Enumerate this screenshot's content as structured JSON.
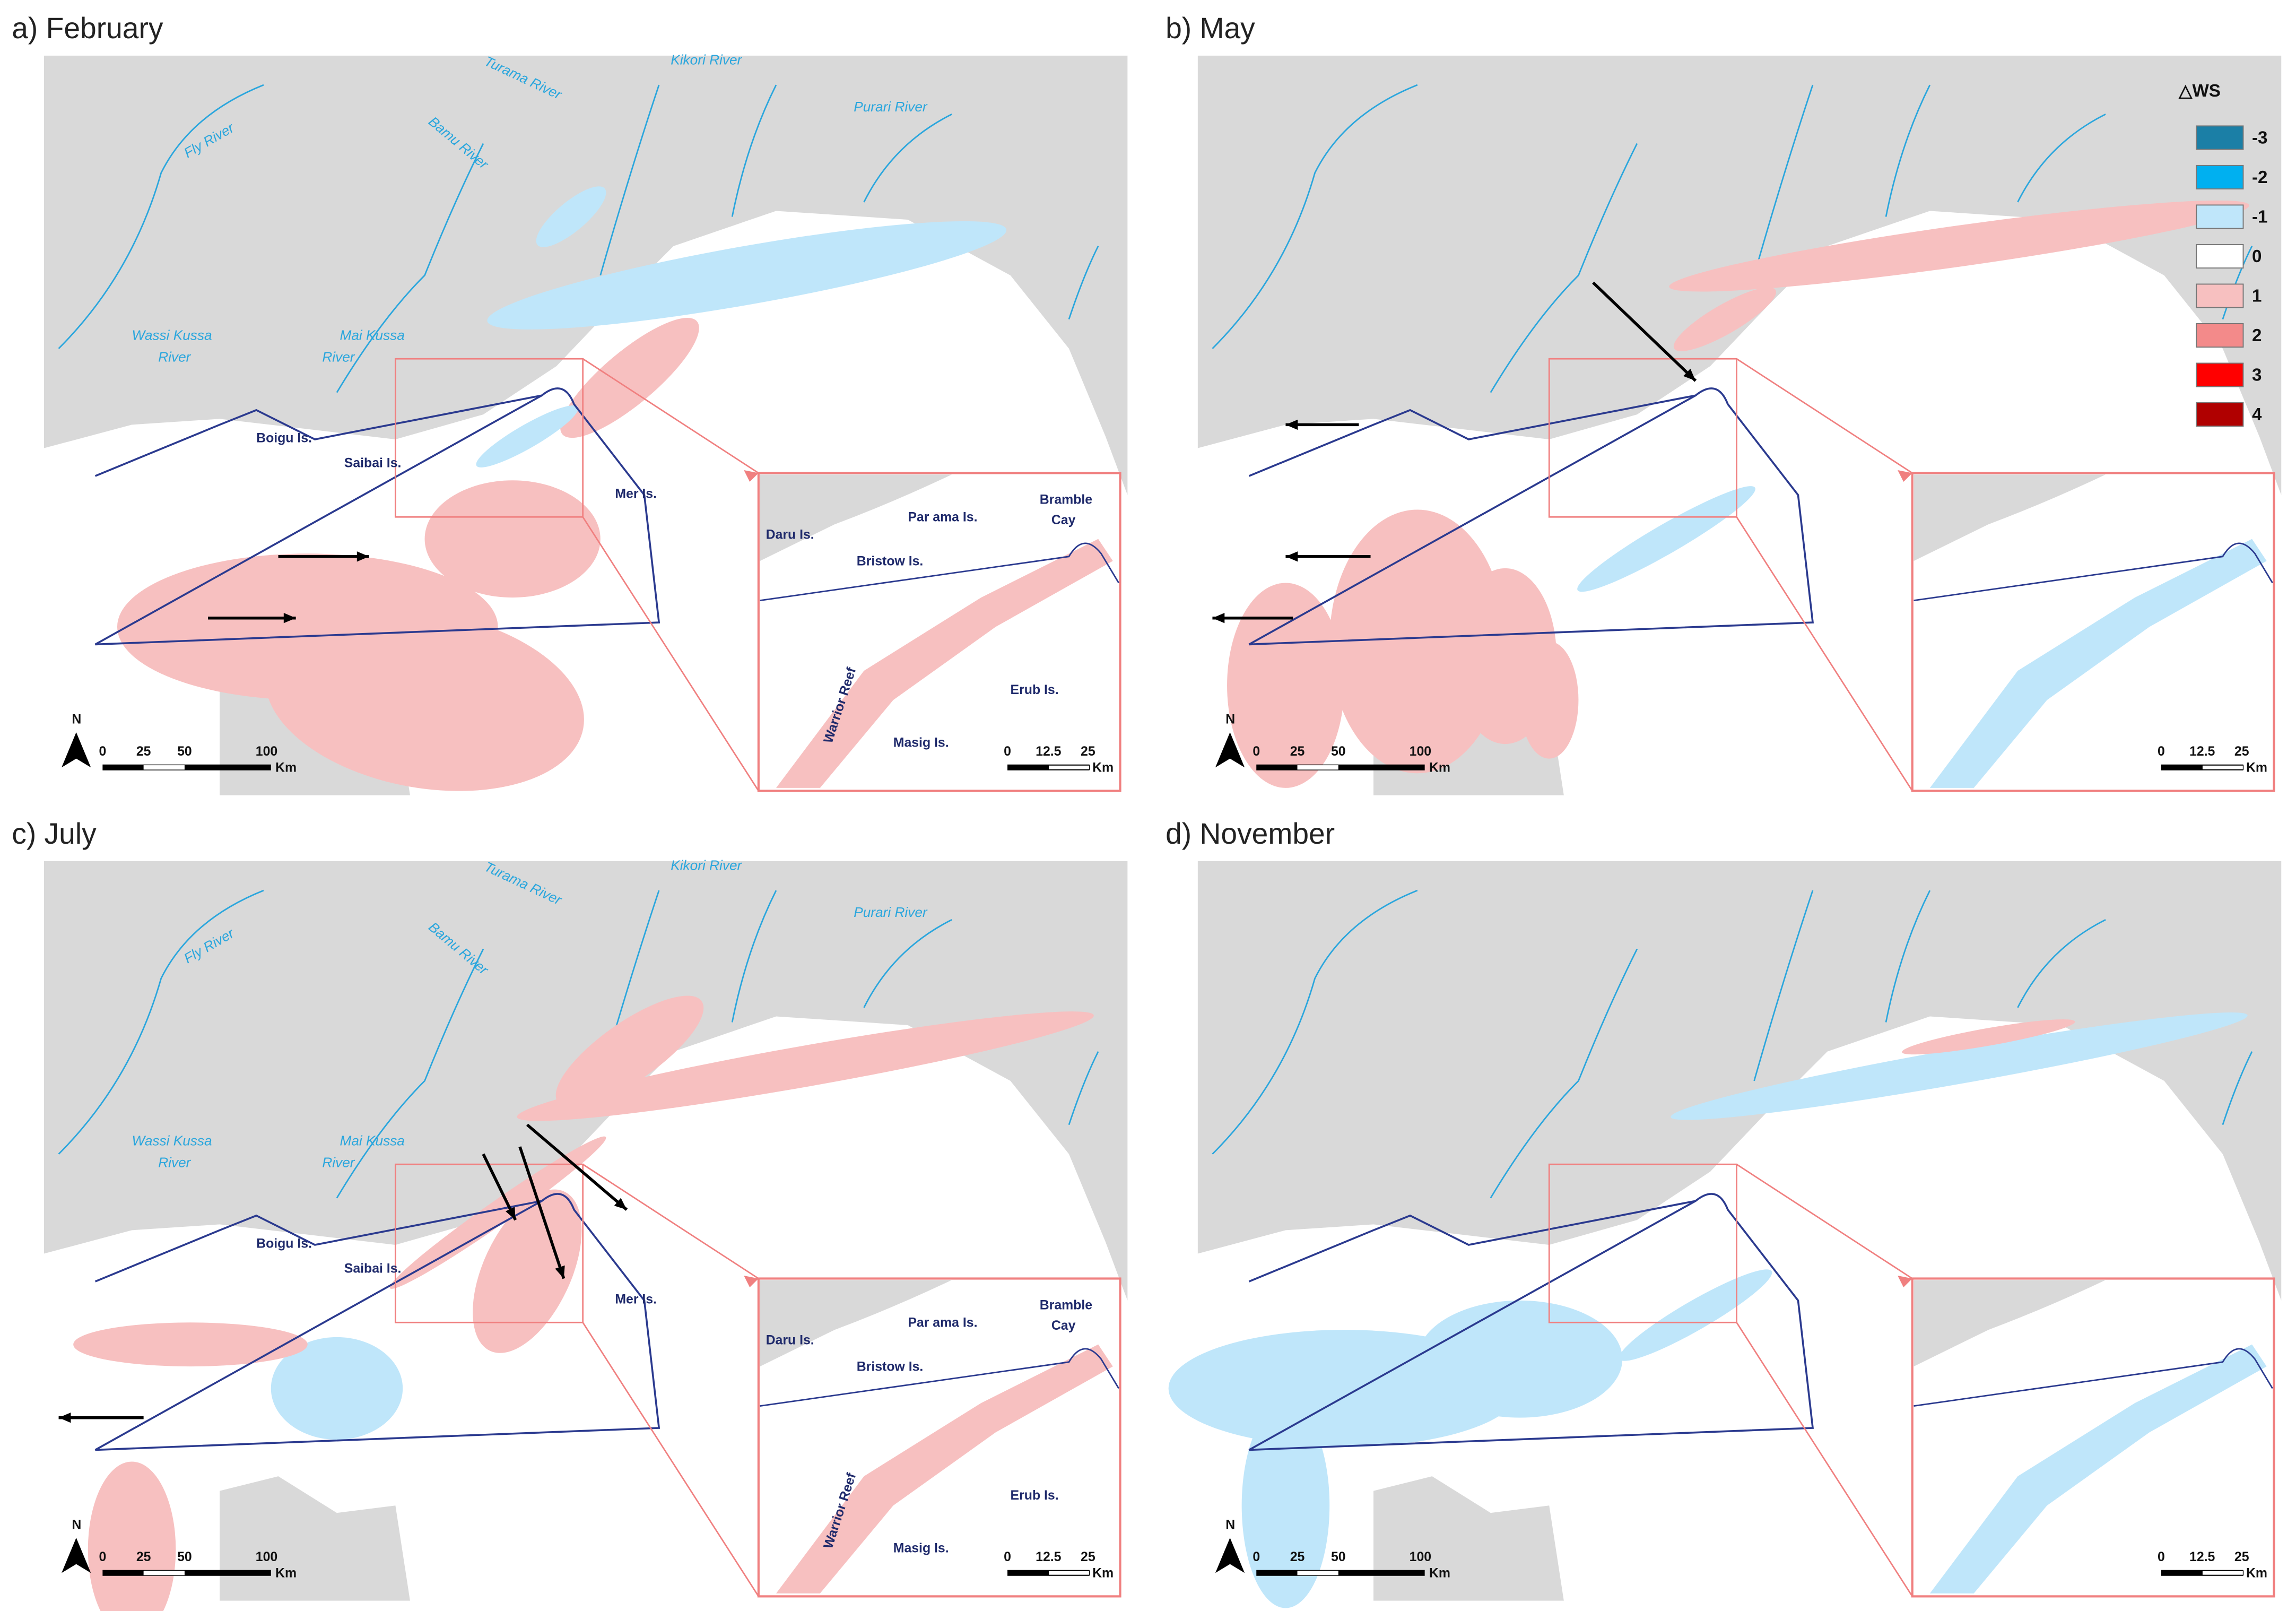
{
  "panels": [
    {
      "label": "a) February",
      "rivers": [
        "Turama River",
        "Kikori River",
        "Purari River",
        "Bamu River",
        "Fly River",
        "Wassi Kussa",
        "River",
        "Mai Kussa",
        "River"
      ],
      "islands": [
        "Boigu Is.",
        "Saibai Is.",
        "Mer Is."
      ],
      "inset_labels": [
        "Daru Is.",
        "Par ama Is.",
        "Bramble",
        "Cay",
        "Bristow Is.",
        "Warrior Reef",
        "Masig Is.",
        "Erub Is."
      ],
      "north": "N",
      "scale": [
        "0",
        "25",
        "50",
        "100",
        "Km"
      ],
      "inset_scale": [
        "0",
        "12.5",
        "25",
        "Km"
      ]
    },
    {
      "label": "b) May",
      "north": "N",
      "scale": [
        "0",
        "25",
        "50",
        "100",
        "Km"
      ],
      "inset_scale": [
        "0",
        "12.5",
        "25",
        "Km"
      ]
    },
    {
      "label": "c) July",
      "rivers": [
        "Turama River",
        "Kikori River",
        "Purari River",
        "Bamu River",
        "Fly River",
        "Wassi Kussa",
        "River",
        "Mai Kussa",
        "River"
      ],
      "islands": [
        "Boigu Is.",
        "Saibai Is.",
        "Mer Is."
      ],
      "inset_labels": [
        "Daru Is.",
        "Par ama Is.",
        "Bramble",
        "Cay",
        "Bristow Is.",
        "Warrior Reef",
        "Masig Is.",
        "Erub Is."
      ],
      "north": "N",
      "scale": [
        "0",
        "25",
        "50",
        "100",
        "Km"
      ],
      "inset_scale": [
        "0",
        "12.5",
        "25",
        "Km"
      ]
    },
    {
      "label": "d) November",
      "north": "N",
      "scale": [
        "0",
        "25",
        "50",
        "100",
        "Km"
      ],
      "inset_scale": [
        "0",
        "12.5",
        "25",
        "Km"
      ]
    }
  ],
  "legend": {
    "title": "△WS",
    "items": [
      {
        "label": "-3",
        "color": "#1b7fa6"
      },
      {
        "label": "-2",
        "color": "#00b0f0"
      },
      {
        "label": "-1",
        "color": "#bfe6fa"
      },
      {
        "label": "0",
        "color": "#ffffff"
      },
      {
        "label": "1",
        "color": "#f7c0c0"
      },
      {
        "label": "2",
        "color": "#f38a8a"
      },
      {
        "label": "3",
        "color": "#ff0000"
      },
      {
        "label": "4",
        "color": "#b00000"
      }
    ]
  }
}
